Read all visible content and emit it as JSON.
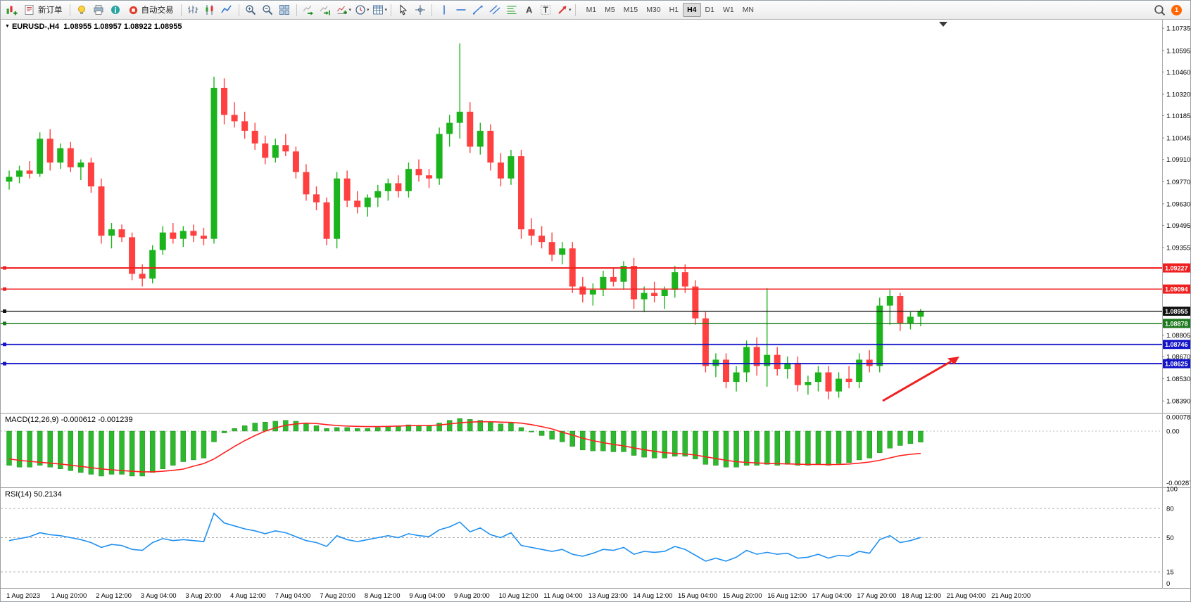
{
  "toolbar": {
    "new_order_label": "新订单",
    "autotrading_label": "自动交易",
    "timeframes": [
      "M1",
      "M5",
      "M15",
      "M30",
      "H1",
      "H4",
      "D1",
      "W1",
      "MN"
    ],
    "active_timeframe": "H4",
    "notification_count": "1"
  },
  "chart": {
    "symbol": "EURUSD-,H4",
    "ohlc": "1.08955 1.08957 1.08922 1.08955",
    "price_axis_labels": [
      "1.10735",
      "1.10595",
      "1.10460",
      "1.10320",
      "1.10185",
      "1.10045",
      "1.09910",
      "1.09770",
      "1.09630",
      "1.09495",
      "1.09355",
      "1.08805",
      "1.08670",
      "1.08530",
      "1.08390"
    ],
    "levels": [
      {
        "price": 1.09227,
        "label": "1.09227",
        "color": "#f02020",
        "width": 2
      },
      {
        "price": 1.09094,
        "label": "1.09094",
        "color": "#f02020",
        "width": 1.4
      },
      {
        "price": 1.08955,
        "label": "1.08955",
        "color": "#111111",
        "width": 1.2
      },
      {
        "price": 1.08878,
        "label": "1.08878",
        "color": "#1e7a1e",
        "width": 1.6
      },
      {
        "price": 1.08746,
        "label": "1.08746",
        "color": "#1414c8",
        "width": 1.8
      },
      {
        "price": 1.08625,
        "label": "1.08625",
        "color": "#1414c8",
        "width": 1.8
      }
    ],
    "time_axis_labels": [
      "1 Aug 2023",
      "1 Aug 20:00",
      "2 Aug 12:00",
      "3 Aug 04:00",
      "3 Aug 20:00",
      "4 Aug 12:00",
      "7 Aug 04:00",
      "7 Aug 20:00",
      "8 Aug 12:00",
      "9 Aug 04:00",
      "9 Aug 20:00",
      "10 Aug 12:00",
      "11 Aug 04:00",
      "13 Aug 23:00",
      "14 Aug 12:00",
      "15 Aug 04:00",
      "15 Aug 20:00",
      "16 Aug 12:00",
      "17 Aug 04:00",
      "17 Aug 20:00",
      "18 Aug 12:00",
      "21 Aug 04:00",
      "21 Aug 20:00"
    ]
  },
  "macd": {
    "label": "MACD(12,26,9) -0.000612 -0.001239",
    "axis_labels": [
      {
        "value": 0.00078,
        "text": "0.00078"
      },
      {
        "value": 0,
        "text": "0.00"
      },
      {
        "value": -0.002871,
        "text": "-0.002871"
      }
    ]
  },
  "rsi": {
    "label": "RSI(14) 50.2134",
    "axis_labels": [
      {
        "value": 100,
        "text": "100"
      },
      {
        "value": 80,
        "text": "80"
      },
      {
        "value": 50,
        "text": "50"
      },
      {
        "value": 15,
        "text": "15"
      },
      {
        "value": 0,
        "text": "0"
      }
    ],
    "levels": [
      80,
      50,
      15
    ]
  },
  "chart_data": {
    "type": "candlestick",
    "symbol": "EURUSD-",
    "timeframe": "H4",
    "ylim": [
      1.0832,
      1.1078
    ],
    "colors": {
      "bull": "#1cb41c",
      "bear": "#ff4040",
      "macd_hist": "#2db82d",
      "macd_signal": "#ff2020",
      "rsi_line": "#2090f0",
      "arrow": "#f02020"
    },
    "candles": [
      [
        1.0977,
        1.0984,
        1.0972,
        1.098
      ],
      [
        1.098,
        1.0987,
        1.0976,
        1.0984
      ],
      [
        1.0984,
        1.099,
        1.0979,
        1.0982
      ],
      [
        1.0982,
        1.1008,
        1.098,
        1.1004
      ],
      [
        1.1004,
        1.101,
        1.0984,
        1.0989
      ],
      [
        1.0989,
        1.1001,
        1.0985,
        1.0998
      ],
      [
        1.0998,
        1.1002,
        1.0983,
        1.0986
      ],
      [
        1.0986,
        1.0991,
        1.0978,
        1.0989
      ],
      [
        1.0989,
        1.0992,
        1.097,
        1.0974
      ],
      [
        1.0974,
        1.0979,
        1.0938,
        1.0943
      ],
      [
        1.0943,
        1.0951,
        1.0935,
        1.0947
      ],
      [
        1.0947,
        1.095,
        1.0939,
        1.0942
      ],
      [
        1.0942,
        1.0945,
        1.0915,
        1.0919
      ],
      [
        1.0919,
        1.0925,
        1.0911,
        1.0916
      ],
      [
        1.0916,
        1.0937,
        1.0913,
        1.0934
      ],
      [
        1.0934,
        1.0949,
        1.0931,
        1.0945
      ],
      [
        1.0945,
        1.0951,
        1.0938,
        1.0941
      ],
      [
        1.0941,
        1.0949,
        1.0936,
        1.0946
      ],
      [
        1.0946,
        1.095,
        1.0939,
        1.0943
      ],
      [
        1.0943,
        1.0948,
        1.0937,
        1.0941
      ],
      [
        1.0941,
        1.1043,
        1.0938,
        1.1036
      ],
      [
        1.1036,
        1.1042,
        1.1013,
        1.1019
      ],
      [
        1.1019,
        1.1027,
        1.1011,
        1.1015
      ],
      [
        1.1015,
        1.1021,
        1.1004,
        1.1009
      ],
      [
        1.1009,
        1.1014,
        1.0997,
        1.1001
      ],
      [
        1.1001,
        1.1006,
        1.0988,
        1.0992
      ],
      [
        1.0992,
        1.1004,
        1.0989,
        1.1
      ],
      [
        1.1,
        1.1007,
        1.0993,
        1.0996
      ],
      [
        1.0996,
        1.0999,
        1.0979,
        1.0983
      ],
      [
        1.0983,
        1.0988,
        1.0965,
        1.0969
      ],
      [
        1.0969,
        1.0974,
        1.0959,
        1.0964
      ],
      [
        1.0964,
        1.0967,
        1.0937,
        1.0941
      ],
      [
        1.0941,
        1.0983,
        1.0935,
        1.0979
      ],
      [
        1.0979,
        1.0984,
        1.0961,
        1.0965
      ],
      [
        1.0965,
        1.0971,
        1.0957,
        1.0961
      ],
      [
        1.0961,
        1.0969,
        1.0955,
        1.0967
      ],
      [
        1.0967,
        1.0975,
        1.0961,
        1.0971
      ],
      [
        1.0971,
        1.0979,
        1.0965,
        1.0976
      ],
      [
        1.0976,
        1.0981,
        1.0967,
        1.0971
      ],
      [
        1.0971,
        1.0989,
        1.0967,
        1.0985
      ],
      [
        1.0985,
        1.0991,
        1.0977,
        1.0981
      ],
      [
        1.0981,
        1.0985,
        1.0973,
        1.0979
      ],
      [
        1.0979,
        1.1011,
        1.0975,
        1.1007
      ],
      [
        1.1007,
        1.1019,
        1.0999,
        1.1014
      ],
      [
        1.1014,
        1.1064,
        1.1004,
        1.1021
      ],
      [
        1.1021,
        1.1027,
        1.0995,
        1.0999
      ],
      [
        1.0999,
        1.1014,
        1.0994,
        1.1009
      ],
      [
        1.1009,
        1.1013,
        1.0984,
        1.0989
      ],
      [
        1.0989,
        1.0995,
        1.0974,
        1.0979
      ],
      [
        1.0979,
        1.0997,
        1.0975,
        1.0993
      ],
      [
        1.0993,
        1.0997,
        1.0941,
        1.0947
      ],
      [
        1.0947,
        1.0954,
        1.0937,
        1.0943
      ],
      [
        1.0943,
        1.0949,
        1.0935,
        1.0939
      ],
      [
        1.0939,
        1.0945,
        1.0927,
        1.0931
      ],
      [
        1.0931,
        1.0939,
        1.0925,
        1.0935
      ],
      [
        1.0935,
        1.0939,
        1.0907,
        1.0911
      ],
      [
        1.0911,
        1.0917,
        1.0901,
        1.0906
      ],
      [
        1.0906,
        1.0913,
        1.0899,
        1.0909
      ],
      [
        1.0909,
        1.0921,
        1.0905,
        1.0917
      ],
      [
        1.0917,
        1.0923,
        1.0911,
        1.0914
      ],
      [
        1.0914,
        1.0927,
        1.0909,
        1.0924
      ],
      [
        1.0924,
        1.0929,
        1.0897,
        1.0903
      ],
      [
        1.0903,
        1.0911,
        1.0895,
        1.0907
      ],
      [
        1.0907,
        1.0914,
        1.0901,
        1.0905
      ],
      [
        1.0905,
        1.0911,
        1.0897,
        1.0909
      ],
      [
        1.0909,
        1.0924,
        1.0904,
        1.092
      ],
      [
        1.092,
        1.0925,
        1.0907,
        1.0911
      ],
      [
        1.0911,
        1.0915,
        1.0887,
        1.0891
      ],
      [
        1.0891,
        1.0895,
        1.0857,
        1.0861
      ],
      [
        1.0861,
        1.0869,
        1.0854,
        1.0865
      ],
      [
        1.0865,
        1.0869,
        1.0847,
        1.0851
      ],
      [
        1.0851,
        1.0861,
        1.0845,
        1.0857
      ],
      [
        1.0857,
        1.0877,
        1.0851,
        1.0873
      ],
      [
        1.0873,
        1.0879,
        1.0855,
        1.0861
      ],
      [
        1.0861,
        1.091,
        1.0848,
        1.0868
      ],
      [
        1.0868,
        1.0873,
        1.0855,
        1.0859
      ],
      [
        1.0859,
        1.0867,
        1.0853,
        1.0863
      ],
      [
        1.0863,
        1.0867,
        1.0845,
        1.0849
      ],
      [
        1.0849,
        1.0855,
        1.0843,
        1.0851
      ],
      [
        1.0851,
        1.0861,
        1.0845,
        1.0857
      ],
      [
        1.0857,
        1.0861,
        1.084,
        1.0845
      ],
      [
        1.0845,
        1.0857,
        1.0841,
        1.0853
      ],
      [
        1.0853,
        1.0861,
        1.0847,
        1.0851
      ],
      [
        1.0851,
        1.0869,
        1.0847,
        1.0865
      ],
      [
        1.0865,
        1.0871,
        1.0857,
        1.0861
      ],
      [
        1.0861,
        1.0904,
        1.0857,
        1.0899
      ],
      [
        1.0899,
        1.0909,
        1.0887,
        1.0905
      ],
      [
        1.0905,
        1.0907,
        1.0883,
        1.0888
      ],
      [
        1.0888,
        1.0895,
        1.0884,
        1.0892
      ],
      [
        1.0892,
        1.0897,
        1.0886,
        1.08955
      ]
    ],
    "macd": {
      "ylim": [
        -0.002871,
        0.00078
      ],
      "histogram": [
        -0.0019,
        -0.002,
        -0.002,
        -0.0019,
        -0.002,
        -0.0021,
        -0.0022,
        -0.0023,
        -0.0024,
        -0.0025,
        -0.0024,
        -0.0024,
        -0.0025,
        -0.0025,
        -0.0023,
        -0.0021,
        -0.0019,
        -0.0017,
        -0.0016,
        -0.0015,
        -0.0006,
        -0.0001,
        0.00015,
        0.0003,
        0.00045,
        0.0005,
        0.00055,
        0.0006,
        0.00055,
        0.00045,
        0.0003,
        0.00015,
        0.0002,
        0.0002,
        0.00015,
        0.00015,
        0.0002,
        0.00025,
        0.0003,
        0.00035,
        0.0003,
        0.0003,
        0.00045,
        0.0006,
        0.0007,
        0.00065,
        0.0006,
        0.0005,
        0.0004,
        0.00045,
        0.0002,
        -5e-05,
        -0.00025,
        -0.00045,
        -0.0006,
        -0.00085,
        -0.00105,
        -0.0011,
        -0.0011,
        -0.00115,
        -0.00115,
        -0.00135,
        -0.00145,
        -0.0015,
        -0.0015,
        -0.0014,
        -0.0014,
        -0.00155,
        -0.00185,
        -0.0019,
        -0.002,
        -0.002,
        -0.0019,
        -0.0019,
        -0.00185,
        -0.0019,
        -0.00185,
        -0.0019,
        -0.0019,
        -0.00185,
        -0.0019,
        -0.0018,
        -0.00175,
        -0.0016,
        -0.0015,
        -0.0012,
        -0.00095,
        -0.0008,
        -0.0007,
        -0.000612
      ],
      "signal": [
        -0.00155,
        -0.00162,
        -0.00168,
        -0.00173,
        -0.00178,
        -0.00183,
        -0.00189,
        -0.00196,
        -0.00203,
        -0.0021,
        -0.00215,
        -0.00219,
        -0.00223,
        -0.00226,
        -0.00226,
        -0.00223,
        -0.00218,
        -0.00211,
        -0.00195,
        -0.0018,
        -0.00155,
        -0.0012,
        -0.00085,
        -0.00053,
        -0.00025,
        0.0,
        0.00018,
        0.00032,
        0.0004,
        0.00044,
        0.00042,
        0.00036,
        0.00031,
        0.00028,
        0.00026,
        0.00025,
        0.00025,
        0.00026,
        0.00028,
        0.0003,
        0.00031,
        0.00031,
        0.00034,
        0.0004,
        0.00046,
        0.0005,
        0.00052,
        0.00052,
        0.0005,
        0.00048,
        0.00044,
        0.00036,
        0.00025,
        0.00012,
        -6e-05,
        -0.00022,
        -0.00039,
        -0.00053,
        -0.00064,
        -0.00074,
        -0.00082,
        -0.00093,
        -0.00103,
        -0.00112,
        -0.0012,
        -0.00124,
        -0.00127,
        -0.00133,
        -0.00143,
        -0.00152,
        -0.00162,
        -0.0017,
        -0.00174,
        -0.00177,
        -0.00179,
        -0.00181,
        -0.00182,
        -0.00184,
        -0.00185,
        -0.00185,
        -0.00186,
        -0.00185,
        -0.00183,
        -0.00178,
        -0.00172,
        -0.00162,
        -0.00149,
        -0.00136,
        -0.00129,
        -0.001239
      ]
    },
    "rsi": {
      "ylim": [
        0,
        100
      ],
      "values": [
        47,
        49,
        51,
        55,
        53,
        52,
        50,
        48,
        45,
        40,
        43,
        42,
        38,
        37,
        45,
        49,
        47,
        48,
        47,
        46,
        75,
        65,
        62,
        59,
        57,
        54,
        57,
        55,
        51,
        47,
        45,
        41,
        52,
        48,
        46,
        48,
        50,
        52,
        50,
        54,
        52,
        51,
        58,
        61,
        66,
        56,
        60,
        53,
        50,
        55,
        42,
        40,
        38,
        36,
        38,
        33,
        31,
        34,
        38,
        37,
        40,
        33,
        36,
        35,
        36,
        41,
        38,
        32,
        26,
        29,
        26,
        30,
        37,
        33,
        35,
        33,
        34,
        29,
        30,
        33,
        29,
        32,
        31,
        36,
        34,
        48,
        52,
        45,
        47,
        50.2
      ]
    }
  }
}
